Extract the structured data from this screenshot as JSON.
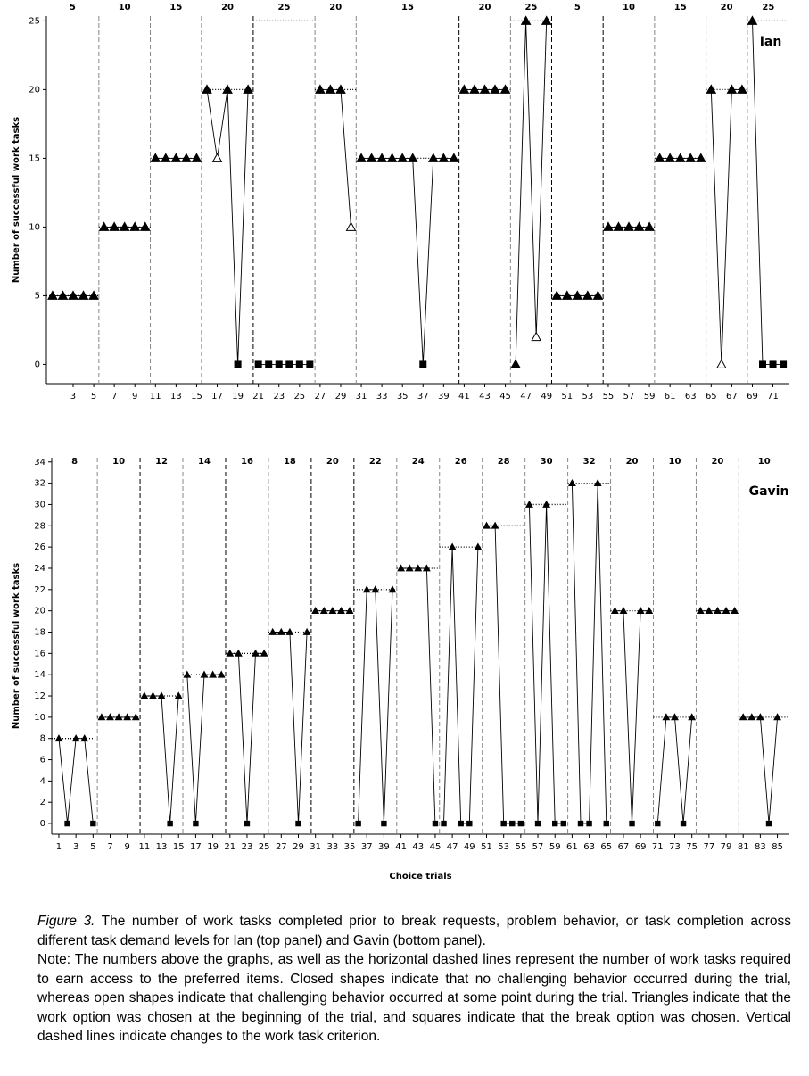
{
  "chart_data": [
    {
      "type": "line",
      "title": "Ian",
      "y_label": "Number of successful work tasks",
      "color": "#000000",
      "x": [
        1,
        2,
        3,
        4,
        5,
        6,
        7,
        8,
        9,
        10,
        11,
        12,
        13,
        14,
        15,
        16,
        17,
        18,
        19,
        20,
        21,
        22,
        23,
        24,
        25,
        26,
        27,
        28,
        29,
        30,
        31,
        32,
        33,
        34,
        35,
        36,
        37,
        38,
        39,
        40,
        41,
        42,
        43,
        44,
        45,
        46,
        47,
        48,
        49,
        50,
        51,
        52,
        53,
        54,
        55,
        56,
        57,
        58,
        59,
        60,
        61,
        62,
        63,
        64,
        65,
        66,
        67,
        68,
        69,
        70,
        71,
        72
      ],
      "values": [
        5,
        5,
        5,
        5,
        5,
        10,
        10,
        10,
        10,
        10,
        15,
        15,
        15,
        15,
        15,
        20,
        15,
        20,
        0,
        20,
        0,
        0,
        0,
        0,
        0,
        0,
        20,
        20,
        20,
        10,
        15,
        15,
        15,
        15,
        15,
        15,
        0,
        15,
        15,
        15,
        20,
        20,
        20,
        20,
        20,
        0,
        25,
        2,
        25,
        5,
        5,
        5,
        5,
        5,
        10,
        10,
        10,
        10,
        10,
        15,
        15,
        15,
        15,
        15,
        20,
        0,
        20,
        20,
        25,
        0,
        0,
        0
      ],
      "markers": [
        "triangle",
        "triangle",
        "triangle",
        "triangle",
        "triangle",
        "triangle",
        "triangle",
        "triangle",
        "triangle",
        "triangle",
        "triangle",
        "triangle",
        "triangle",
        "triangle",
        "triangle",
        "triangle",
        "open-triangle",
        "triangle",
        "square",
        "triangle",
        "square",
        "square",
        "square",
        "square",
        "square",
        "square",
        "triangle",
        "triangle",
        "triangle",
        "open-triangle",
        "triangle",
        "triangle",
        "triangle",
        "triangle",
        "triangle",
        "triangle",
        "square",
        "triangle",
        "triangle",
        "triangle",
        "triangle",
        "triangle",
        "triangle",
        "triangle",
        "triangle",
        "triangle",
        "triangle",
        "open-triangle",
        "triangle",
        "triangle",
        "triangle",
        "triangle",
        "triangle",
        "triangle",
        "triangle",
        "triangle",
        "triangle",
        "triangle",
        "triangle",
        "triangle",
        "triangle",
        "triangle",
        "triangle",
        "triangle",
        "triangle",
        "open-triangle",
        "triangle",
        "triangle",
        "triangle",
        "square",
        "square",
        "square"
      ],
      "phase_criteria": [
        5,
        10,
        15,
        20,
        25,
        20,
        15,
        20,
        25,
        5,
        10,
        15,
        20,
        25
      ],
      "phase_changes": [
        5.5,
        10.5,
        15.5,
        20.5,
        26.5,
        30.5,
        40.5,
        45.5,
        49.5,
        54.5,
        59.5,
        64.5,
        68.5
      ],
      "phase_line_colors": [
        "#888888",
        "#888888",
        "#000000",
        "#000000",
        "#888888",
        "#888888",
        "#000000",
        "#888888",
        "#000000",
        "#000000",
        "#888888",
        "#000000",
        "#000000"
      ],
      "xlim": [
        0.4,
        72.6
      ],
      "ylim": [
        -1.4,
        25.35
      ],
      "xticks": [
        3,
        5,
        7,
        9,
        11,
        13,
        15,
        17,
        19,
        21,
        23,
        25,
        27,
        29,
        31,
        33,
        35,
        37,
        39,
        41,
        43,
        45,
        47,
        49,
        51,
        53,
        55,
        57,
        59,
        61,
        63,
        65,
        67,
        69,
        71
      ],
      "yticks": [
        0,
        5,
        10,
        15,
        20,
        25
      ]
    },
    {
      "type": "line",
      "title": "Gavin",
      "y_label": "Number of successful work tasks",
      "x_label": "Choice trials",
      "color": "#000000",
      "x": [
        1,
        2,
        3,
        4,
        5,
        6,
        7,
        8,
        9,
        10,
        11,
        12,
        13,
        14,
        15,
        16,
        17,
        18,
        19,
        20,
        21,
        22,
        23,
        24,
        25,
        26,
        27,
        28,
        29,
        30,
        31,
        32,
        33,
        34,
        35,
        36,
        37,
        38,
        39,
        40,
        41,
        42,
        43,
        44,
        45,
        46,
        47,
        48,
        49,
        50,
        51,
        52,
        53,
        54,
        55,
        56,
        57,
        58,
        59,
        60,
        61,
        62,
        63,
        64,
        65,
        66,
        67,
        68,
        69,
        70,
        71,
        72,
        73,
        74,
        75,
        76,
        77,
        78,
        79,
        80,
        81,
        82,
        83,
        84,
        85
      ],
      "values": [
        8,
        0,
        8,
        8,
        0,
        10,
        10,
        10,
        10,
        10,
        12,
        12,
        12,
        0,
        12,
        14,
        0,
        14,
        14,
        14,
        16,
        16,
        0,
        16,
        16,
        18,
        18,
        18,
        0,
        18,
        20,
        20,
        20,
        20,
        20,
        0,
        22,
        22,
        0,
        22,
        24,
        24,
        24,
        24,
        0,
        0,
        26,
        0,
        0,
        26,
        28,
        28,
        0,
        0,
        0,
        30,
        0,
        30,
        0,
        0,
        32,
        0,
        0,
        32,
        0,
        20,
        20,
        0,
        20,
        20,
        0,
        10,
        10,
        0,
        10,
        20,
        20,
        20,
        20,
        20,
        10,
        10,
        10,
        0,
        10
      ],
      "markers": [
        "triangle",
        "square",
        "triangle",
        "triangle",
        "square",
        "triangle",
        "triangle",
        "triangle",
        "triangle",
        "triangle",
        "triangle",
        "triangle",
        "triangle",
        "square",
        "triangle",
        "triangle",
        "square",
        "triangle",
        "triangle",
        "triangle",
        "triangle",
        "triangle",
        "square",
        "triangle",
        "triangle",
        "triangle",
        "triangle",
        "triangle",
        "square",
        "triangle",
        "triangle",
        "triangle",
        "triangle",
        "triangle",
        "triangle",
        "square",
        "triangle",
        "triangle",
        "square",
        "triangle",
        "triangle",
        "triangle",
        "triangle",
        "triangle",
        "square",
        "square",
        "triangle",
        "square",
        "square",
        "triangle",
        "triangle",
        "triangle",
        "square",
        "square",
        "square",
        "triangle",
        "square",
        "triangle",
        "square",
        "square",
        "triangle",
        "square",
        "square",
        "triangle",
        "square",
        "triangle",
        "triangle",
        "square",
        "triangle",
        "triangle",
        "square",
        "triangle",
        "triangle",
        "square",
        "triangle",
        "triangle",
        "triangle",
        "triangle",
        "triangle",
        "triangle",
        "triangle",
        "triangle",
        "triangle",
        "square",
        "triangle"
      ],
      "phase_criteria": [
        8,
        10,
        12,
        14,
        16,
        18,
        20,
        22,
        24,
        26,
        28,
        30,
        32,
        20,
        10,
        20,
        10
      ],
      "phase_changes": [
        5.5,
        10.5,
        15.5,
        20.5,
        25.5,
        30.5,
        35.5,
        40.5,
        45.5,
        50.5,
        55.5,
        60.5,
        65.5,
        70.5,
        75.5,
        80.5
      ],
      "phase_line_colors": [
        "#888888",
        "#000000",
        "#888888",
        "#000000",
        "#888888",
        "#000000",
        "#000000",
        "#888888",
        "#888888",
        "#888888",
        "#888888",
        "#888888",
        "#888888",
        "#888888",
        "#888888",
        "#000000"
      ],
      "xlim": [
        0.17,
        86.4
      ],
      "ylim": [
        -1,
        34.4
      ],
      "xticks": [
        1,
        3,
        5,
        7,
        9,
        11,
        13,
        15,
        17,
        19,
        21,
        23,
        25,
        27,
        29,
        31,
        33,
        35,
        37,
        39,
        41,
        43,
        45,
        47,
        49,
        51,
        53,
        55,
        57,
        59,
        61,
        63,
        65,
        67,
        69,
        71,
        73,
        75,
        77,
        79,
        81,
        83,
        85
      ],
      "yticks": [
        0,
        2,
        4,
        6,
        8,
        10,
        12,
        14,
        16,
        18,
        20,
        22,
        24,
        26,
        28,
        30,
        32,
        34
      ]
    }
  ],
  "caption": {
    "figure_label": "Figure 3.",
    "text": "The number of work tasks completed prior to break requests, problem behavior, or task completion  across different task demand levels for Ian (top panel) and Gavin (bottom panel).",
    "note": "Note: The numbers above the graphs, as well as the horizontal dashed lines represent the number of work tasks required to earn access to the preferred items. Closed shapes indicate that no challenging behavior occurred during the trial, whereas open shapes indicate that challenging behavior occurred at some point during the trial. Triangles indicate that the work option was chosen at the beginning of the trial, and squares indicate that the break option was chosen. Vertical dashed lines indicate changes to the work task criterion."
  }
}
